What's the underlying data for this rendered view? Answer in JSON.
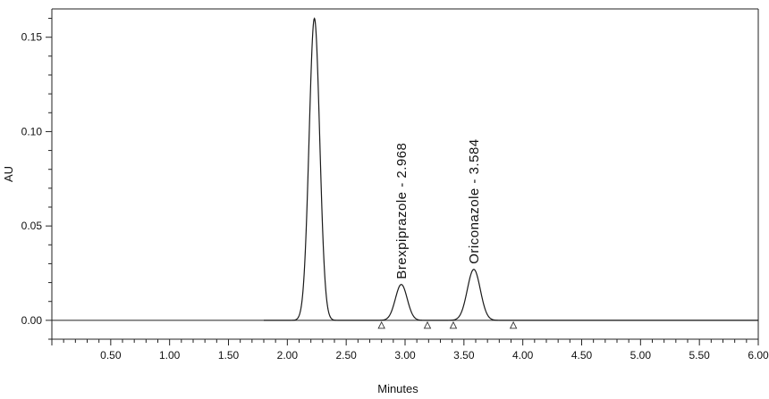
{
  "chart_data": {
    "type": "line",
    "title": "",
    "xlabel": "Minutes",
    "ylabel": "AU",
    "xlim": [
      0.0,
      6.0
    ],
    "ylim": [
      -0.01,
      0.165
    ],
    "x_ticks": [
      "0.50",
      "1.00",
      "1.50",
      "2.00",
      "2.50",
      "3.00",
      "3.50",
      "4.00",
      "4.50",
      "5.00",
      "5.50",
      "6.00"
    ],
    "y_ticks": [
      "0.00",
      "0.05",
      "0.10",
      "0.15"
    ],
    "series": [
      {
        "peaks": [
          {
            "rt": 2.23,
            "height": 0.16,
            "width": 0.045
          },
          {
            "rt": 2.968,
            "height": 0.019,
            "width": 0.05
          },
          {
            "rt": 3.584,
            "height": 0.027,
            "width": 0.055
          }
        ]
      }
    ],
    "peak_labels": [
      {
        "text": "Brexpiprazole - 2.968",
        "x": 2.968
      },
      {
        "text": "Oriconazole - 3.584",
        "x": 3.584
      }
    ],
    "integration_markers": [
      2.8,
      3.19,
      3.41,
      3.92
    ]
  }
}
